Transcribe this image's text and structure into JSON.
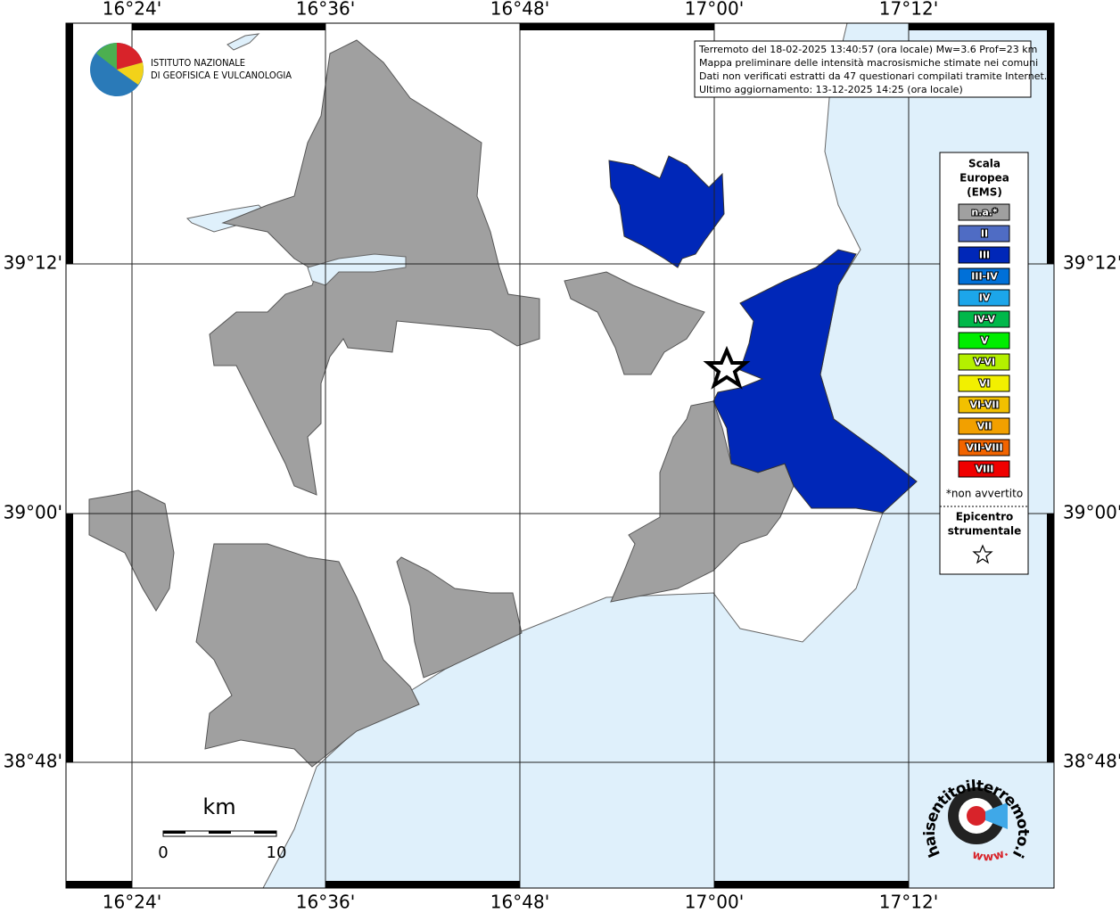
{
  "map": {
    "lon_labels": [
      "16°24'",
      "16°36'",
      "16°48'",
      "17°00'",
      "17°12'"
    ],
    "lat_labels": [
      "39°12'",
      "39°00'",
      "38°48'"
    ],
    "logo": {
      "line1": "ISTITUTO NAZIONALE",
      "line2": "DI GEOFISICA E VULCANOLOGIA"
    },
    "info": [
      "Terremoto del 18-02-2025 13:40:57 (ora locale) Mw=3.6 Prof=23 km",
      "Mappa preliminare delle intensità macrosismiche stimate nei comuni",
      "Dati non verificati estratti da 47 questionari compilati tramite Internet.",
      "Ultimo aggiornamento: 13-12-2025 14:25 (ora locale)"
    ],
    "legend": {
      "title": [
        "Scala",
        "Europea",
        "(EMS)"
      ],
      "items": [
        {
          "label": "n.a.*",
          "color": "#a0a0a0"
        },
        {
          "label": "II",
          "color": "#4f6cc4"
        },
        {
          "label": "III",
          "color": "#0027b8"
        },
        {
          "label": "III-IV",
          "color": "#0070d8"
        },
        {
          "label": "IV",
          "color": "#1ca6ea"
        },
        {
          "label": "IV-V",
          "color": "#00b84a"
        },
        {
          "label": "V",
          "color": "#00ee00"
        },
        {
          "label": "V-VI",
          "color": "#b4f000"
        },
        {
          "label": "VI",
          "color": "#f2f000"
        },
        {
          "label": "VI-VII",
          "color": "#f2c000"
        },
        {
          "label": "VII",
          "color": "#f2a000"
        },
        {
          "label": "VII-VIII",
          "color": "#f26400"
        },
        {
          "label": "VIII",
          "color": "#f00000"
        }
      ],
      "note": "*non avvertito",
      "epicenter": [
        "Epicentro",
        "strumentale"
      ]
    },
    "scale": {
      "unit": "km",
      "labels": [
        "0",
        "10"
      ]
    },
    "badge": {
      "text": "haisentitoilterremoto.it",
      "www": "www."
    }
  }
}
